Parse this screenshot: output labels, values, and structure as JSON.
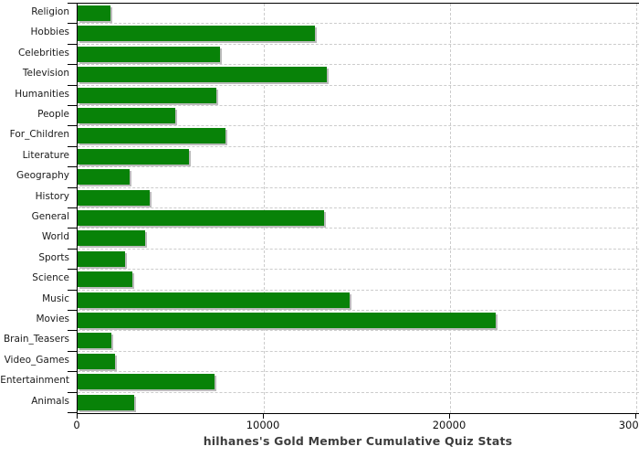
{
  "title": "hilhanes's Gold Member Cumulative Quiz Stats",
  "colors": {
    "bar": "#088208",
    "bar_shadow": "#bbbbbb",
    "grid": "#cccccc",
    "axis": "#000000",
    "title_text": "#3d3d3d",
    "label_text": "#1a1a1a",
    "background": "#ffffff"
  },
  "chart_data": {
    "type": "bar",
    "orientation": "horizontal",
    "title": "hilhanes's Gold Member Cumulative Quiz Stats",
    "xlabel": "",
    "ylabel": "",
    "legend": "none",
    "grid": "dashed vertical gridlines at x ticks; dashed horizontal separators between category rows",
    "xlim": [
      0,
      30200
    ],
    "x_ticks": [
      0,
      10000,
      20000,
      30000
    ],
    "x_tick_labels": [
      "0",
      "10000",
      "20000",
      "30000"
    ],
    "categories": [
      "Religion",
      "Hobbies",
      "Celebrities",
      "Television",
      "Humanities",
      "People",
      "For_Children",
      "Literature",
      "Geography",
      "History",
      "General",
      "World",
      "Sports",
      "Science",
      "Music",
      "Movies",
      "Brain_Teasers",
      "Video_Games",
      "Entertainment",
      "Animals"
    ],
    "values": [
      1750,
      12750,
      7650,
      13400,
      7450,
      5250,
      7950,
      6000,
      2800,
      3850,
      13250,
      3650,
      2550,
      2950,
      14600,
      22450,
      1800,
      2000,
      7350,
      3050
    ]
  }
}
